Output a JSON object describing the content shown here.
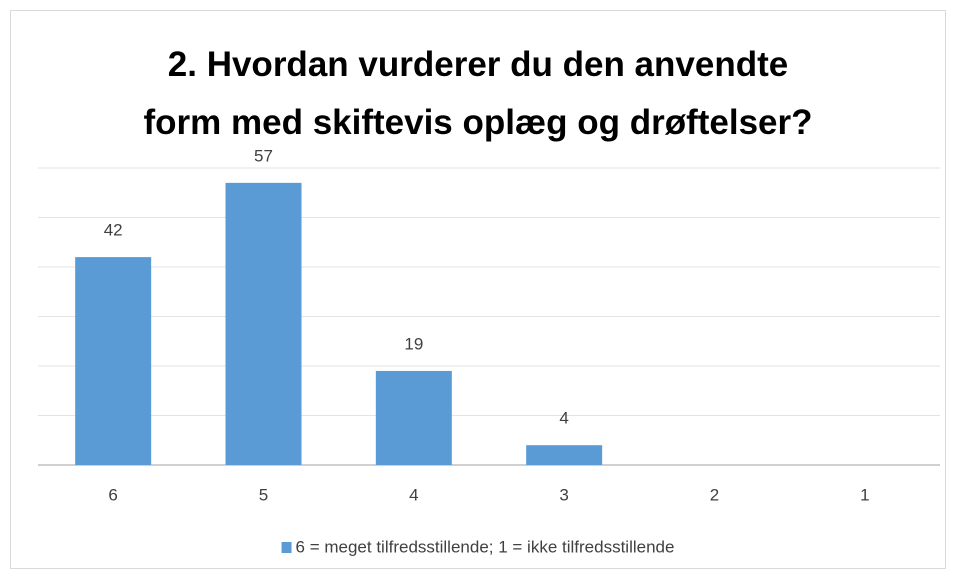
{
  "chart_data": {
    "type": "bar",
    "title": "2. Hvordan vurderer du den anvendte form med skiftevis oplæg og drøftelser?",
    "categories": [
      "6",
      "5",
      "4",
      "3",
      "2",
      "1"
    ],
    "series": [
      {
        "name": "6 = meget tilfredsstillende; 1 = ikke tilfredsstillende",
        "color": "#5b9bd5",
        "values": [
          42,
          57,
          19,
          4,
          null,
          null
        ]
      }
    ],
    "ylim": [
      0,
      60
    ],
    "yticks": [
      0,
      10,
      20,
      30,
      40,
      50,
      60
    ],
    "grid": true,
    "legend": "bottom"
  }
}
